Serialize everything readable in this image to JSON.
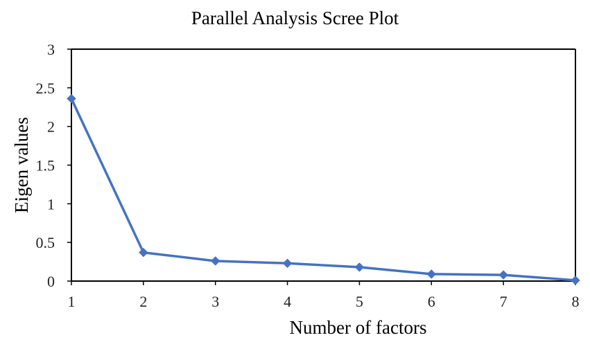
{
  "chart_data": {
    "type": "line",
    "title": "Parallel Analysis Scree Plot",
    "xlabel": "Number of factors",
    "ylabel": "Eigen values",
    "x": [
      1,
      2,
      3,
      4,
      5,
      6,
      7,
      8
    ],
    "series": [
      {
        "values": [
          2.36,
          0.37,
          0.26,
          0.23,
          0.18,
          0.09,
          0.08,
          0.01
        ]
      }
    ],
    "xlim": [
      1,
      8
    ],
    "ylim": [
      0,
      3
    ],
    "x_ticks": [
      "1",
      "2",
      "3",
      "4",
      "5",
      "6",
      "7",
      "8"
    ],
    "y_ticks": [
      "0",
      "0.5",
      "1",
      "1.5",
      "2",
      "2.5",
      "3"
    ],
    "marker": "diamond",
    "grid": false,
    "legend": "none",
    "colors": {
      "series": "#4472C4",
      "axis": "#000000",
      "frame": "#000000",
      "text": "#000000"
    }
  }
}
